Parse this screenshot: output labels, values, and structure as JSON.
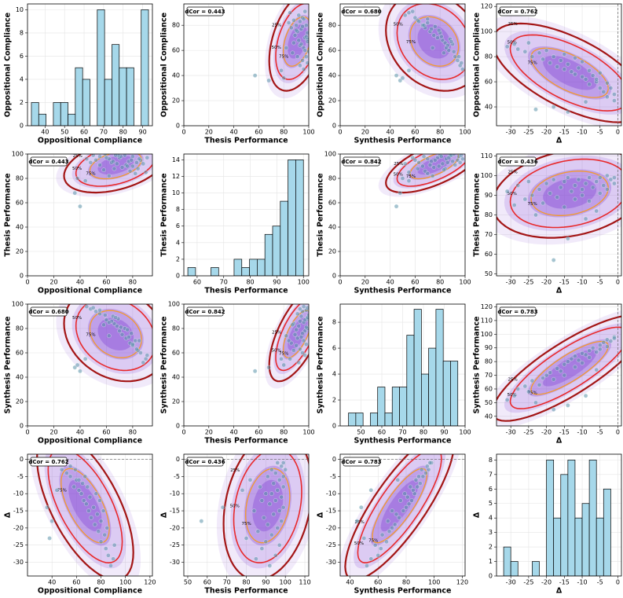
{
  "samples": [
    [
      88,
      92,
      52,
      -31
    ],
    [
      90,
      85,
      55,
      -29
    ],
    [
      86,
      95,
      60,
      -28
    ],
    [
      84,
      88,
      62,
      -26
    ],
    [
      91,
      97,
      58,
      -25
    ],
    [
      80,
      90,
      66,
      -24
    ],
    [
      83,
      93,
      63,
      -22
    ],
    [
      78,
      86,
      68,
      -21
    ],
    [
      85,
      96,
      70,
      -20
    ],
    [
      75,
      91,
      72,
      -19
    ],
    [
      80,
      98,
      67,
      -18
    ],
    [
      72,
      89,
      75,
      -17
    ],
    [
      77,
      94,
      73,
      -16
    ],
    [
      70,
      97,
      78,
      -15
    ],
    [
      82,
      84,
      70,
      -15
    ],
    [
      74,
      99,
      80,
      -14
    ],
    [
      68,
      92,
      82,
      -13
    ],
    [
      79,
      95,
      76,
      -12
    ],
    [
      66,
      88,
      84,
      -12
    ],
    [
      71,
      98,
      81,
      -11
    ],
    [
      64,
      93,
      86,
      -10
    ],
    [
      76,
      90,
      79,
      -10
    ],
    [
      62,
      96,
      85,
      -9
    ],
    [
      69,
      99,
      88,
      -8
    ],
    [
      58,
      87,
      83,
      -8
    ],
    [
      65,
      94,
      90,
      -7
    ],
    [
      60,
      97,
      87,
      -6
    ],
    [
      55,
      91,
      92,
      -5
    ],
    [
      67,
      99,
      89,
      -5
    ],
    [
      52,
      95,
      94,
      -4
    ],
    [
      59,
      100,
      91,
      -3
    ],
    [
      48,
      93,
      96,
      -3
    ],
    [
      55,
      98,
      95,
      -2
    ],
    [
      45,
      96,
      98,
      -1
    ],
    [
      50,
      99,
      97,
      -1
    ],
    [
      40,
      57,
      45,
      -18
    ],
    [
      36,
      68,
      48,
      -14
    ],
    [
      44,
      78,
      55,
      -9
    ],
    [
      38,
      80,
      50,
      -23
    ],
    [
      62,
      82,
      74,
      -6
    ]
  ],
  "chart_data": [
    {
      "type": "histogram",
      "xlabel": "Oppositional Compliance",
      "ylabel": "Oppositional Compliance",
      "color": "#a6d8ea",
      "grid": true,
      "bins": [
        33,
        36.75,
        40.5,
        44.25,
        48,
        51.75,
        55.5,
        59.25,
        63,
        66.75,
        70.5,
        74.25,
        78,
        81.75,
        85.5,
        89.25,
        93
      ],
      "counts": [
        2,
        1,
        0,
        2,
        2,
        1,
        5,
        4,
        0,
        10,
        4,
        7,
        5,
        5,
        0,
        10
      ],
      "xlim": [
        31,
        95
      ],
      "xticks": [
        40,
        50,
        60,
        70,
        80,
        90
      ],
      "ylim": [
        0,
        10.5
      ],
      "yticks": [
        0,
        2,
        4,
        6,
        8,
        10
      ]
    },
    {
      "type": "scatter",
      "annotation": "dCor = 0.443",
      "contour_labels": [
        "25%",
        "50%",
        "75%"
      ],
      "xlabel": "Thesis Performance",
      "ylabel": "Oppositional Compliance",
      "color": "#5b93aa",
      "grid": true,
      "xlim": [
        0,
        100
      ],
      "xticks": [
        0,
        20,
        40,
        60,
        80,
        100
      ],
      "ylim": [
        0,
        97
      ],
      "yticks": [
        0,
        20,
        40,
        60,
        80
      ]
    },
    {
      "type": "scatter",
      "annotation": "dCor = 0.680",
      "contour_labels": [
        "25%",
        "50%",
        "75%"
      ],
      "xlabel": "Synthesis Performance",
      "ylabel": "Oppositional Compliance",
      "color": "#5b93aa",
      "grid": true,
      "xlim": [
        0,
        100
      ],
      "xticks": [
        0,
        20,
        40,
        60,
        80,
        100
      ],
      "ylim": [
        0,
        97
      ],
      "yticks": [
        0,
        20,
        40,
        60,
        80
      ]
    },
    {
      "type": "scatter",
      "annotation": "dCor = 0.762",
      "contour_labels": [
        "25%",
        "50%",
        "75%"
      ],
      "xlabel": "Δ",
      "ylabel": "Oppositional Compliance",
      "color": "#5b93aa",
      "grid": true,
      "vline": 0,
      "xlim": [
        -34,
        1
      ],
      "xticks": [
        -30,
        -25,
        -20,
        -15,
        -10,
        -5,
        0
      ],
      "ylim": [
        25,
        122
      ],
      "yticks": [
        40,
        60,
        80,
        100,
        120
      ]
    },
    {
      "type": "scatter",
      "annotation": "dCor = 0.443",
      "contour_labels": [
        "25%",
        "50%",
        "75%"
      ],
      "xlabel": "Oppositional Compliance",
      "ylabel": "Thesis Performance",
      "color": "#5b93aa",
      "grid": true,
      "xlim": [
        0,
        95
      ],
      "xticks": [
        0,
        20,
        40,
        60,
        80
      ],
      "ylim": [
        0,
        100
      ],
      "yticks": [
        0,
        20,
        40,
        60,
        80,
        100
      ]
    },
    {
      "type": "histogram",
      "xlabel": "Thesis Performance",
      "ylabel": "Thesis Performance",
      "color": "#a6d8ea",
      "grid": true,
      "bins": [
        56.5,
        59.4,
        62.3,
        65.2,
        68.1,
        71,
        73.9,
        76.8,
        79.7,
        82.6,
        85.5,
        88.4,
        91.3,
        94.2,
        97.1,
        100
      ],
      "counts": [
        1,
        0,
        0,
        1,
        0,
        0,
        2,
        1,
        2,
        2,
        5,
        6,
        9,
        14,
        14
      ],
      "xlim": [
        55,
        102
      ],
      "xticks": [
        60,
        70,
        80,
        90,
        100
      ],
      "ylim": [
        0,
        14.7
      ],
      "yticks": [
        0,
        2,
        4,
        6,
        8,
        10,
        12,
        14
      ]
    },
    {
      "type": "scatter",
      "annotation": "dCor = 0.842",
      "contour_labels": [
        "25%",
        "50%",
        "75%"
      ],
      "xlabel": "Synthesis Performance",
      "ylabel": "Thesis Performance",
      "color": "#5b93aa",
      "grid": true,
      "xlim": [
        0,
        100
      ],
      "xticks": [
        0,
        20,
        40,
        60,
        80,
        100
      ],
      "ylim": [
        0,
        100
      ],
      "yticks": [
        0,
        20,
        40,
        60,
        80,
        100
      ]
    },
    {
      "type": "scatter",
      "annotation": "dCor = 0.436",
      "contour_labels": [
        "25%",
        "50%",
        "75%"
      ],
      "xlabel": "Δ",
      "ylabel": "Thesis Performance",
      "color": "#5b93aa",
      "grid": true,
      "vline": 0,
      "xlim": [
        -34,
        1
      ],
      "xticks": [
        -30,
        -25,
        -20,
        -15,
        -10,
        -5,
        0
      ],
      "ylim": [
        49,
        111
      ],
      "yticks": [
        50,
        60,
        70,
        80,
        90,
        100,
        110
      ]
    },
    {
      "type": "scatter",
      "annotation": "dCor = 0.680",
      "contour_labels": [
        "25%",
        "50%",
        "75%"
      ],
      "xlabel": "Oppositional Compliance",
      "ylabel": "Synthesis Performance",
      "color": "#5b93aa",
      "grid": true,
      "xlim": [
        0,
        95
      ],
      "xticks": [
        0,
        20,
        40,
        60,
        80
      ],
      "ylim": [
        0,
        100
      ],
      "yticks": [
        0,
        20,
        40,
        60,
        80,
        100
      ]
    },
    {
      "type": "scatter",
      "annotation": "dCor = 0.842",
      "contour_labels": [
        "25%",
        "50%",
        "75%"
      ],
      "xlabel": "Thesis Performance",
      "ylabel": "Synthesis Performance",
      "color": "#5b93aa",
      "grid": true,
      "xlim": [
        0,
        100
      ],
      "xticks": [
        0,
        20,
        40,
        60,
        80,
        100
      ],
      "ylim": [
        0,
        100
      ],
      "yticks": [
        0,
        20,
        40,
        60,
        80,
        100
      ]
    },
    {
      "type": "histogram",
      "xlabel": "Synthesis Performance",
      "ylabel": "Synthesis Performance",
      "color": "#a6d8ea",
      "grid": true,
      "bins": [
        44,
        47.5,
        51,
        54.5,
        58,
        61.5,
        65,
        68.5,
        72,
        75.5,
        79,
        82.5,
        86,
        89.5,
        93,
        96.5
      ],
      "counts": [
        1,
        1,
        0,
        1,
        3,
        1,
        3,
        3,
        7,
        9,
        4,
        6,
        9,
        5,
        5
      ],
      "xlim": [
        40,
        100
      ],
      "xticks": [
        50,
        60,
        70,
        80,
        90,
        100
      ],
      "ylim": [
        0,
        9.4
      ],
      "yticks": [
        0,
        2,
        4,
        6,
        8
      ]
    },
    {
      "type": "scatter",
      "annotation": "dCor = 0.783",
      "contour_labels": [
        "25%",
        "50%",
        "75%"
      ],
      "xlabel": "Δ",
      "ylabel": "Synthesis Performance",
      "color": "#5b93aa",
      "grid": true,
      "vline": 0,
      "xlim": [
        -34,
        1
      ],
      "xticks": [
        -30,
        -25,
        -20,
        -15,
        -10,
        -5,
        0
      ],
      "ylim": [
        33,
        122
      ],
      "yticks": [
        40,
        50,
        60,
        70,
        80,
        90,
        100,
        110,
        120
      ]
    },
    {
      "type": "scatter",
      "annotation": "dCor = 0.762",
      "contour_labels": [
        "25%",
        "50%",
        "75%"
      ],
      "xlabel": "Oppositional Compliance",
      "ylabel": "Δ",
      "color": "#5b93aa",
      "grid": true,
      "hline": 0,
      "xlim": [
        20,
        122
      ],
      "xticks": [
        40,
        60,
        80,
        100,
        120
      ],
      "ylim": [
        -34,
        1.5
      ],
      "yticks": [
        -30,
        -25,
        -20,
        -15,
        -10,
        -5,
        0
      ]
    },
    {
      "type": "scatter",
      "annotation": "dCor = 0.436",
      "contour_labels": [
        "25%",
        "50%",
        "75%"
      ],
      "xlabel": "Thesis Performance",
      "ylabel": "Δ",
      "color": "#5b93aa",
      "grid": true,
      "hline": 0,
      "xlim": [
        48,
        112
      ],
      "xticks": [
        50,
        60,
        70,
        80,
        90,
        100,
        110
      ],
      "ylim": [
        -34,
        1.5
      ],
      "yticks": [
        -30,
        -25,
        -20,
        -15,
        -10,
        -5,
        0
      ]
    },
    {
      "type": "scatter",
      "annotation": "dCor = 0.783",
      "contour_labels": [
        "25%",
        "50%",
        "75%"
      ],
      "xlabel": "Synthesis Performance",
      "ylabel": "Δ",
      "color": "#5b93aa",
      "grid": true,
      "hline": 0,
      "xlim": [
        33,
        122
      ],
      "xticks": [
        40,
        60,
        80,
        100,
        120
      ],
      "ylim": [
        -34,
        1.5
      ],
      "yticks": [
        -30,
        -25,
        -20,
        -15,
        -10,
        -5,
        0
      ]
    },
    {
      "type": "histogram",
      "xlabel": "Δ",
      "ylabel": "Δ",
      "color": "#a6d8ea",
      "grid": true,
      "bins": [
        -32,
        -30,
        -28,
        -26,
        -24,
        -22,
        -20,
        -18,
        -16,
        -14,
        -12,
        -10,
        -8,
        -6,
        -4,
        -2
      ],
      "counts": [
        2,
        1,
        0,
        0,
        1,
        0,
        8,
        4,
        7,
        8,
        4,
        5,
        8,
        4,
        6
      ],
      "xlim": [
        -34,
        1
      ],
      "xticks": [
        -30,
        -25,
        -20,
        -15,
        -10,
        -5,
        0
      ],
      "ylim": [
        0,
        8.4
      ],
      "yticks": [
        0,
        1,
        2,
        3,
        4,
        5,
        6,
        7,
        8
      ]
    }
  ]
}
